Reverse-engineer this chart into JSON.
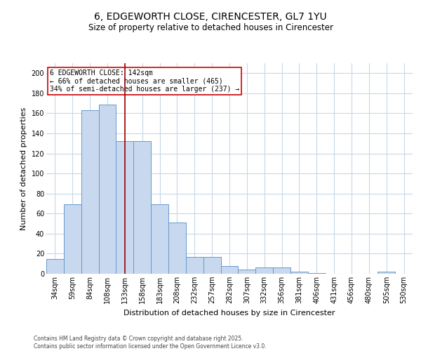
{
  "title": "6, EDGEWORTH CLOSE, CIRENCESTER, GL7 1YU",
  "subtitle": "Size of property relative to detached houses in Cirencester",
  "xlabel": "Distribution of detached houses by size in Cirencester",
  "ylabel": "Number of detached properties",
  "categories": [
    "34sqm",
    "59sqm",
    "84sqm",
    "108sqm",
    "133sqm",
    "158sqm",
    "183sqm",
    "208sqm",
    "232sqm",
    "257sqm",
    "282sqm",
    "307sqm",
    "332sqm",
    "356sqm",
    "381sqm",
    "406sqm",
    "431sqm",
    "456sqm",
    "480sqm",
    "505sqm",
    "530sqm"
  ],
  "values": [
    15,
    69,
    163,
    169,
    132,
    132,
    69,
    51,
    17,
    17,
    8,
    4,
    6,
    6,
    2,
    1,
    0,
    0,
    0,
    2,
    0
  ],
  "bar_color": "#c8d9ef",
  "bar_edge_color": "#6699cc",
  "vline_x": 4,
  "vline_color": "#990000",
  "annotation_text": "6 EDGEWORTH CLOSE: 142sqm\n← 66% of detached houses are smaller (465)\n34% of semi-detached houses are larger (237) →",
  "annotation_box_color": "#ffffff",
  "annotation_box_edge": "#cc0000",
  "ylim": [
    0,
    210
  ],
  "yticks": [
    0,
    20,
    40,
    60,
    80,
    100,
    120,
    140,
    160,
    180,
    200
  ],
  "background_color": "#ffffff",
  "grid_color": "#c8d8e8",
  "footer": "Contains HM Land Registry data © Crown copyright and database right 2025.\nContains public sector information licensed under the Open Government Licence v3.0.",
  "title_fontsize": 10,
  "subtitle_fontsize": 8.5,
  "xlabel_fontsize": 8,
  "ylabel_fontsize": 8,
  "annot_fontsize": 7,
  "tick_fontsize": 7,
  "footer_fontsize": 5.5
}
